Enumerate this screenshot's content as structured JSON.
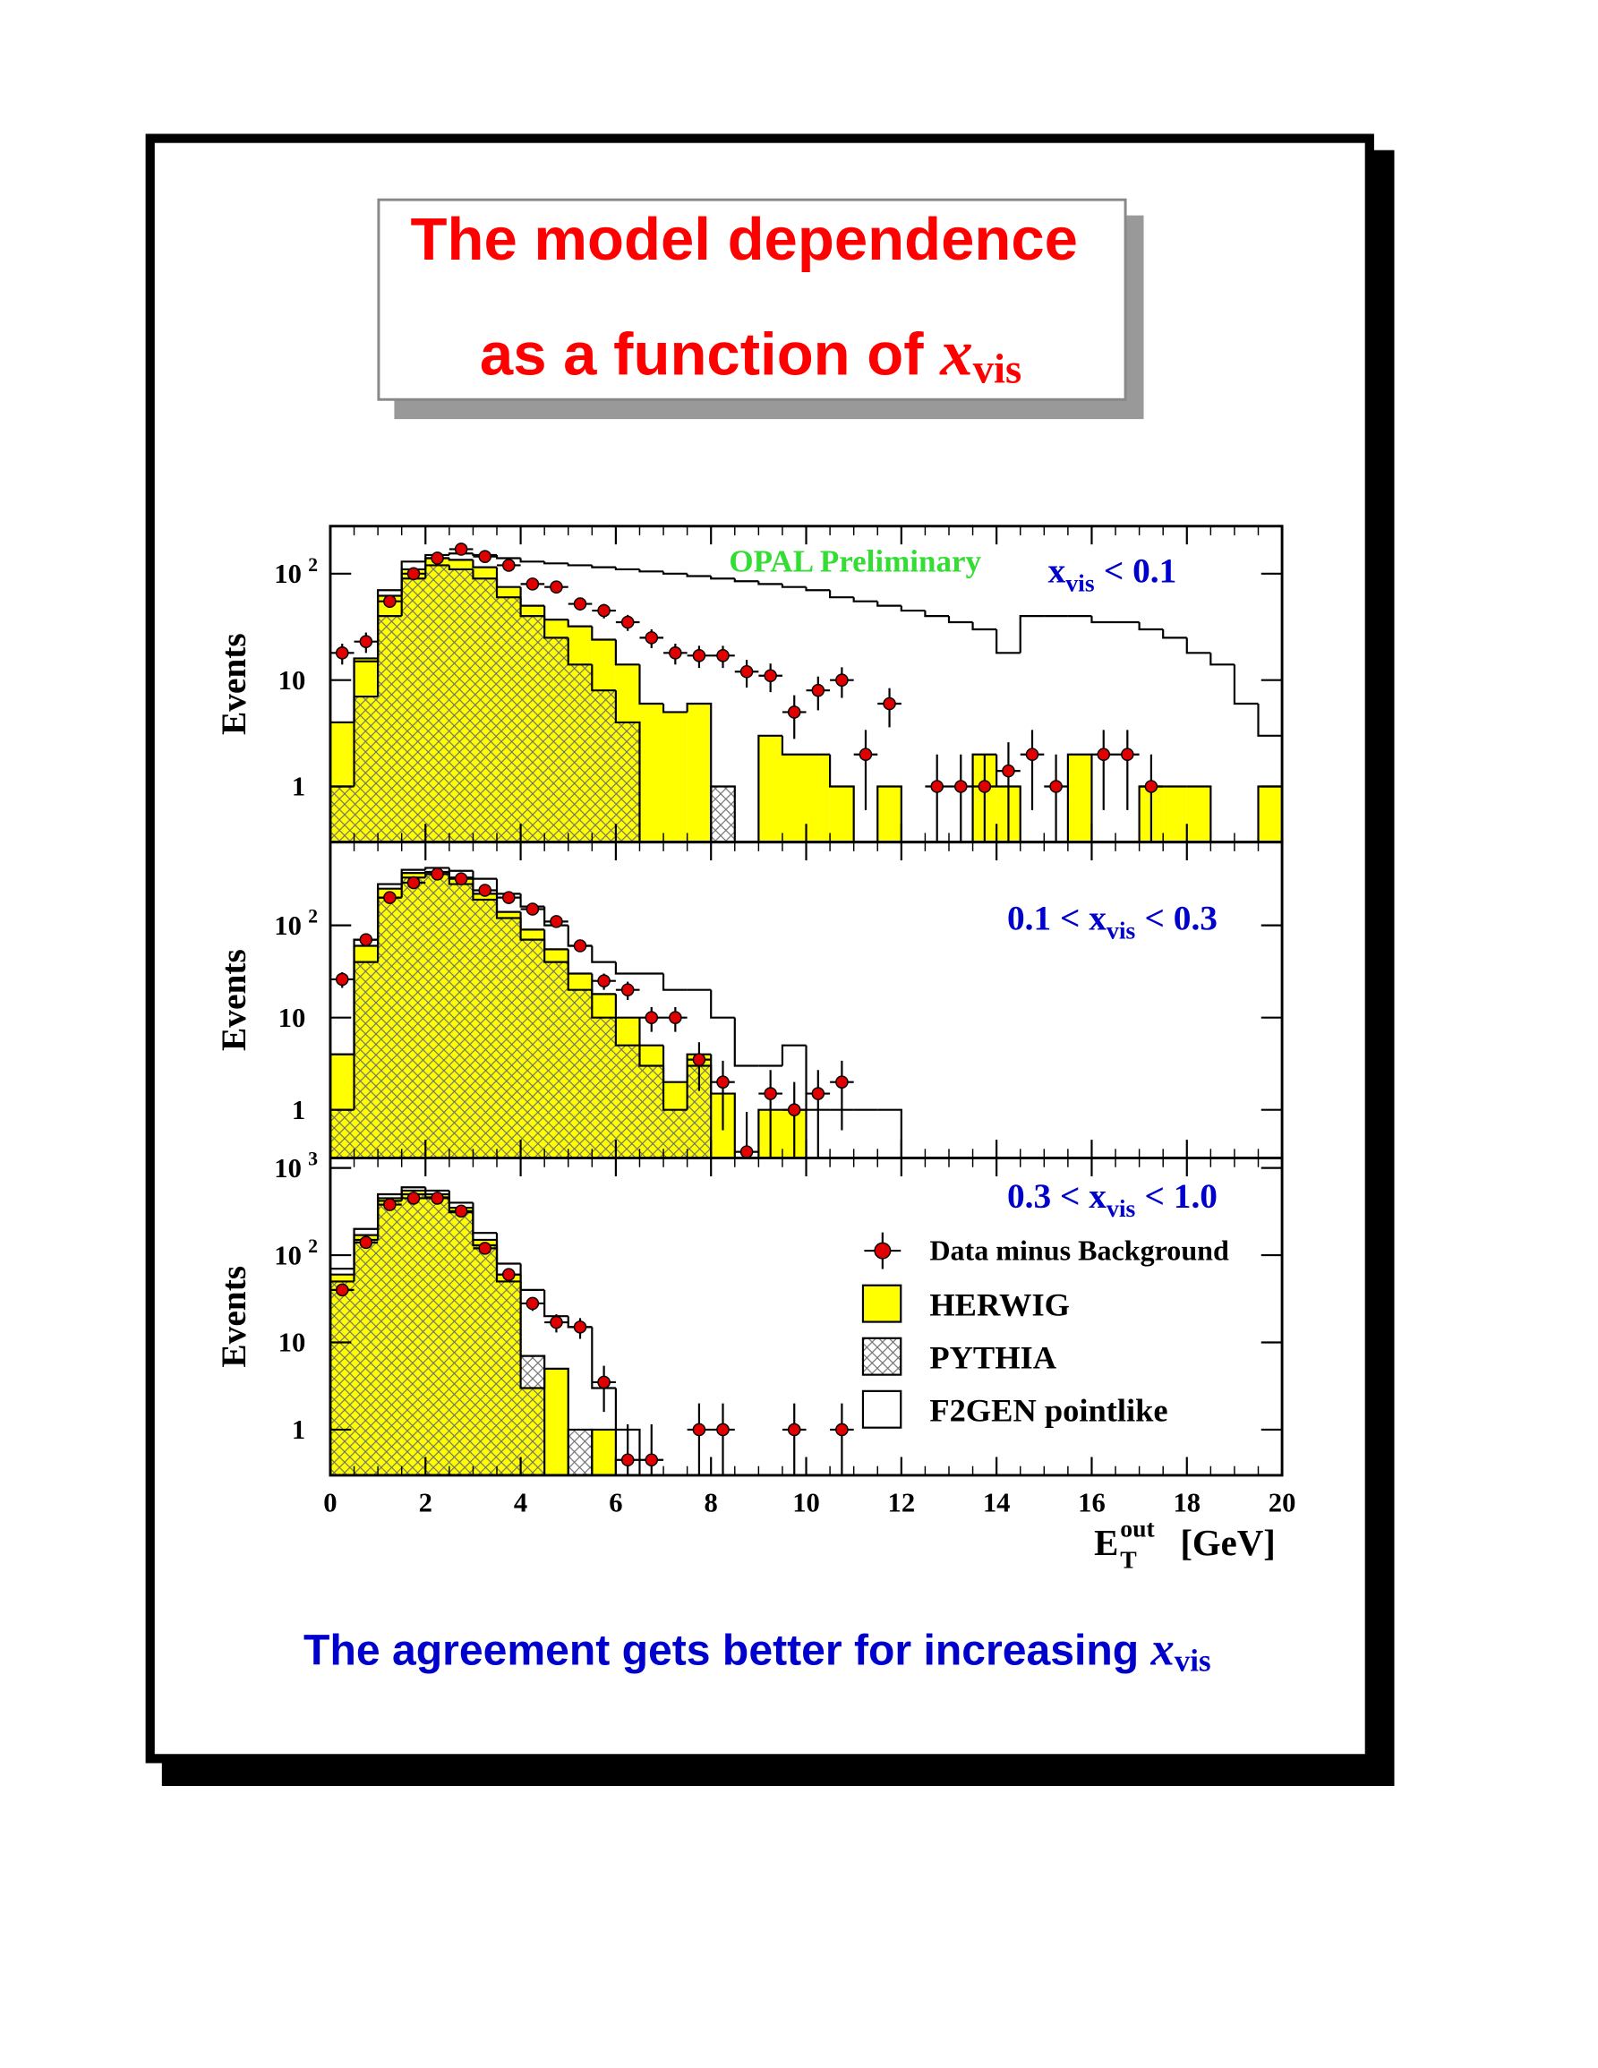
{
  "title": {
    "line1": "The model dependence",
    "line2": "as a function of",
    "symbol": "x",
    "symbol_sub": "vis"
  },
  "footer": {
    "text": "The agreement gets better for increasing",
    "symbol": "x",
    "symbol_sub": "vis"
  },
  "chart_data": [
    {
      "type": "histogram",
      "y_label": "Events",
      "log_y": true,
      "show_xtick_labels": false,
      "note": "OPAL Preliminary",
      "annotation": {
        "prefix": "x",
        "sub": "vis",
        "suffix": "< 0.1"
      },
      "bins": [
        0,
        0.5,
        1,
        1.5,
        2,
        2.5,
        3,
        3.5,
        4,
        4.5,
        5,
        5.5,
        6,
        6.5,
        7,
        7.5,
        8,
        8.5,
        9,
        9.5,
        10,
        10.5,
        11,
        11.5,
        12,
        12.5,
        13,
        13.5,
        14,
        14.5,
        15,
        15.5,
        16,
        16.5,
        17,
        17.5,
        18,
        18.5,
        19,
        19.5,
        20
      ],
      "xlim": [
        0,
        20
      ],
      "xticks": [
        0,
        2,
        4,
        6,
        8,
        10,
        12,
        14,
        16,
        18,
        20
      ],
      "ylim": [
        0.3,
        280
      ],
      "yticks": [
        1,
        10,
        {
          "value": 100,
          "label": "10",
          "exponent": "2"
        }
      ],
      "series": [
        {
          "style": "points",
          "color": "#e00000",
          "values": [
            18,
            23,
            55,
            100,
            140,
            170,
            145,
            120,
            80,
            75,
            52,
            45,
            35,
            25,
            18,
            17,
            17,
            12,
            11,
            5,
            8,
            10,
            2,
            6,
            null,
            1,
            1,
            1,
            1.4,
            2,
            1,
            null,
            2,
            2,
            1,
            null,
            null,
            null,
            null,
            null
          ],
          "errors": [
            4,
            5,
            7,
            10,
            12,
            13,
            12,
            11,
            9,
            9,
            7,
            7,
            6,
            5,
            4,
            4,
            4,
            3.5,
            3.3,
            2.2,
            2.8,
            3.2,
            1.4,
            2.4,
            null,
            1,
            1,
            1,
            1.2,
            1.4,
            1,
            null,
            1.4,
            1.4,
            1,
            null,
            null,
            null,
            null,
            null
          ]
        },
        {
          "style": "fill",
          "color": "#ffff00",
          "values": [
            4,
            16,
            62,
            110,
            140,
            135,
            115,
            75,
            50,
            37,
            32,
            24,
            14,
            6,
            5,
            6,
            null,
            null,
            3,
            2,
            2,
            1,
            null,
            1,
            null,
            null,
            null,
            2,
            1,
            null,
            null,
            2,
            null,
            null,
            1,
            1,
            1,
            null,
            null,
            1
          ]
        },
        {
          "style": "hatch",
          "color": "#707070",
          "values": [
            1,
            7,
            40,
            90,
            120,
            110,
            90,
            60,
            40,
            25,
            14,
            8,
            4,
            null,
            null,
            null,
            1,
            null,
            null,
            null,
            null,
            null,
            null,
            null,
            null,
            null,
            null,
            null,
            null,
            null,
            null,
            null,
            null,
            null,
            null,
            null,
            null,
            null,
            null,
            null
          ]
        },
        {
          "style": "outline",
          "color": "#000000",
          "values": [
            4,
            15,
            70,
            130,
            150,
            155,
            150,
            140,
            130,
            125,
            120,
            115,
            110,
            105,
            100,
            95,
            90,
            85,
            80,
            75,
            70,
            60,
            55,
            50,
            45,
            40,
            35,
            30,
            18,
            40,
            40,
            40,
            35,
            35,
            30,
            25,
            18,
            14,
            6,
            3
          ]
        }
      ]
    },
    {
      "type": "histogram",
      "y_label": "Events",
      "log_y": true,
      "show_xtick_labels": false,
      "annotation": {
        "prefix": "0.1 < x",
        "sub": "vis",
        "suffix": "< 0.3"
      },
      "bins": [
        0,
        0.5,
        1,
        1.5,
        2,
        2.5,
        3,
        3.5,
        4,
        4.5,
        5,
        5.5,
        6,
        6.5,
        7,
        7.5,
        8,
        8.5,
        9,
        9.5,
        10,
        10.5,
        11,
        11.5,
        12,
        12.5,
        13,
        13.5,
        14,
        14.5,
        15,
        15.5,
        16,
        16.5,
        17,
        17.5,
        18,
        18.5,
        19,
        19.5,
        20
      ],
      "xlim": [
        0,
        20
      ],
      "xticks": [
        0,
        2,
        4,
        6,
        8,
        10,
        12,
        14,
        16,
        18,
        20
      ],
      "ylim": [
        0.3,
        800
      ],
      "yticks": [
        1,
        10,
        {
          "value": 100,
          "label": "10",
          "exponent": "2"
        }
      ],
      "series": [
        {
          "style": "points",
          "color": "#e00000",
          "values": [
            26,
            70,
            200,
            290,
            360,
            320,
            240,
            200,
            150,
            110,
            60,
            25,
            20,
            10,
            10,
            3.5,
            2,
            0.35,
            1.5,
            1,
            1.5,
            2,
            null,
            null,
            null,
            null,
            null,
            null,
            null,
            null,
            null,
            null,
            null,
            null,
            null,
            null,
            null,
            null,
            null,
            null
          ],
          "errors": [
            5,
            8,
            14,
            17,
            19,
            18,
            15,
            14,
            12,
            10,
            8,
            5,
            4.5,
            3,
            3,
            1.9,
            1.4,
            0.6,
            1.2,
            1,
            1.2,
            1.4,
            null,
            null,
            null,
            null,
            null,
            null,
            null,
            null,
            null,
            null,
            null,
            null,
            null,
            null,
            null,
            null,
            null,
            null
          ]
        },
        {
          "style": "fill",
          "color": "#ffff00",
          "values": [
            4,
            60,
            250,
            370,
            380,
            330,
            220,
            140,
            90,
            55,
            30,
            18,
            10,
            5,
            2,
            4,
            1.5,
            null,
            1,
            1,
            null,
            null,
            null,
            null,
            null,
            null,
            null,
            null,
            null,
            null,
            null,
            null,
            null,
            null,
            null,
            null,
            null,
            null,
            null,
            null
          ]
        },
        {
          "style": "hatch",
          "color": "#707070",
          "values": [
            1,
            40,
            200,
            330,
            360,
            280,
            190,
            120,
            70,
            40,
            20,
            10,
            5,
            3,
            1,
            3,
            null,
            null,
            null,
            null,
            null,
            null,
            null,
            null,
            null,
            null,
            null,
            null,
            null,
            null,
            null,
            null,
            null,
            null,
            null,
            null,
            null,
            null,
            null,
            null
          ]
        },
        {
          "style": "outline",
          "color": "#000000",
          "values": [
            4,
            70,
            280,
            400,
            420,
            390,
            320,
            220,
            160,
            100,
            60,
            40,
            30,
            30,
            20,
            20,
            10,
            3,
            3,
            5,
            1,
            1,
            1,
            1,
            null,
            null,
            null,
            null,
            null,
            null,
            null,
            null,
            null,
            null,
            null,
            null,
            null,
            null,
            null,
            null
          ]
        }
      ]
    },
    {
      "type": "histogram",
      "y_label": "Events",
      "log_y": true,
      "show_xtick_labels": true,
      "annotation": {
        "prefix": "0.3 < x",
        "sub": "vis",
        "suffix": "< 1.0"
      },
      "x_label": {
        "main": "E",
        "sub": "T",
        "sup": "out",
        "unit": "[GeV]"
      },
      "legend": "right",
      "bins": [
        0,
        0.5,
        1,
        1.5,
        2,
        2.5,
        3,
        3.5,
        4,
        4.5,
        5,
        5.5,
        6,
        6.5,
        7,
        7.5,
        8,
        8.5,
        9,
        9.5,
        10,
        10.5,
        11,
        11.5,
        12,
        12.5,
        13,
        13.5,
        14,
        14.5,
        15,
        15.5,
        16,
        16.5,
        17,
        17.5,
        18,
        18.5,
        19,
        19.5,
        20
      ],
      "xlim": [
        0,
        20
      ],
      "xticks": [
        0,
        2,
        4,
        6,
        8,
        10,
        12,
        14,
        16,
        18,
        20
      ],
      "ylim": [
        0.3,
        1300
      ],
      "yticks": [
        1,
        10,
        {
          "value": 100,
          "label": "10",
          "exponent": "2"
        },
        {
          "value": 1000,
          "label": "10",
          "exponent": "3"
        }
      ],
      "series": [
        {
          "name": "Data minus Background",
          "style": "points",
          "color": "#e00000",
          "values": [
            40,
            140,
            380,
            450,
            450,
            320,
            120,
            60,
            28,
            17,
            15,
            3.5,
            0.45,
            0.45,
            null,
            1,
            1,
            null,
            null,
            1,
            null,
            1,
            null,
            null,
            null,
            null,
            null,
            null,
            null,
            null,
            null,
            null,
            null,
            null,
            null,
            null,
            null,
            null,
            null,
            null
          ],
          "errors": [
            6,
            12,
            19,
            21,
            21,
            18,
            11,
            8,
            5,
            4,
            4,
            1.9,
            0.7,
            0.7,
            null,
            1,
            1,
            null,
            null,
            1,
            null,
            1,
            null,
            null,
            null,
            null,
            null,
            null,
            null,
            null,
            null,
            null,
            null,
            null,
            null,
            null,
            null,
            null,
            null,
            null
          ]
        },
        {
          "name": "HERWIG",
          "style": "fill",
          "color": "#ffff00",
          "values": [
            60,
            170,
            450,
            550,
            500,
            350,
            150,
            60,
            3,
            5,
            null,
            1,
            null,
            null,
            null,
            null,
            null,
            null,
            null,
            null,
            null,
            null,
            null,
            null,
            null,
            null,
            null,
            null,
            null,
            null,
            null,
            null,
            null,
            null,
            null,
            null,
            null,
            null,
            null,
            null
          ]
        },
        {
          "name": "PYTHIA",
          "style": "hatch",
          "color": "#707070",
          "values": [
            50,
            150,
            420,
            500,
            460,
            310,
            130,
            50,
            7,
            null,
            1,
            null,
            null,
            null,
            null,
            null,
            null,
            null,
            null,
            null,
            null,
            null,
            null,
            null,
            null,
            null,
            null,
            null,
            null,
            null,
            null,
            null,
            null,
            null,
            null,
            null,
            null,
            null,
            null,
            null
          ]
        },
        {
          "name": "F2GEN pointlike",
          "style": "outline",
          "color": "#000000",
          "values": [
            70,
            200,
            500,
            600,
            550,
            400,
            180,
            80,
            40,
            20,
            15,
            3,
            1,
            null,
            null,
            null,
            null,
            null,
            null,
            null,
            null,
            null,
            null,
            null,
            null,
            null,
            null,
            null,
            null,
            null,
            null,
            null,
            null,
            null,
            null,
            null,
            null,
            null,
            null,
            null
          ]
        }
      ]
    }
  ]
}
